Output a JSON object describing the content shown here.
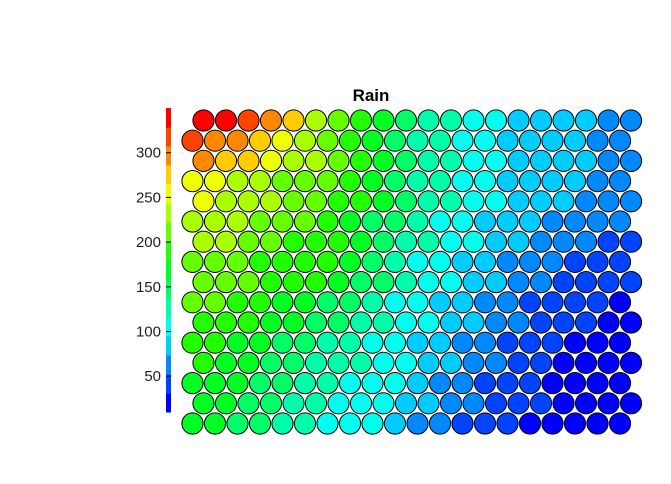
{
  "chart_data": {
    "type": "heatmap",
    "layout": "hexagonal",
    "title": "Rain",
    "xlabel": "",
    "ylabel": "",
    "colorbar": {
      "range": [
        10,
        350
      ],
      "ticks": [
        50,
        100,
        150,
        200,
        250,
        300
      ],
      "tick_labels": [
        "50",
        "100",
        "150",
        "200",
        "250",
        "300"
      ],
      "palette": "rainbow",
      "levels": 16
    },
    "grid": {
      "rows": 16,
      "cols": 20
    },
    "values": [
      [
        350,
        340,
        315,
        300,
        280,
        240,
        215,
        185,
        165,
        145,
        130,
        120,
        110,
        100,
        90,
        85,
        80,
        75,
        70,
        65
      ],
      [
        325,
        305,
        290,
        275,
        260,
        235,
        210,
        185,
        165,
        145,
        130,
        120,
        110,
        100,
        90,
        85,
        80,
        75,
        70,
        65
      ],
      [
        295,
        285,
        270,
        255,
        240,
        225,
        210,
        185,
        165,
        150,
        135,
        120,
        110,
        100,
        90,
        85,
        80,
        75,
        70,
        65
      ],
      [
        260,
        250,
        240,
        230,
        220,
        215,
        205,
        180,
        165,
        150,
        135,
        120,
        110,
        100,
        90,
        85,
        80,
        75,
        70,
        65
      ],
      [
        250,
        240,
        230,
        225,
        220,
        215,
        200,
        180,
        160,
        145,
        130,
        120,
        105,
        95,
        85,
        80,
        75,
        70,
        65,
        60
      ],
      [
        240,
        235,
        225,
        215,
        210,
        205,
        195,
        175,
        155,
        140,
        125,
        115,
        100,
        90,
        80,
        75,
        70,
        65,
        60,
        55
      ],
      [
        230,
        225,
        220,
        210,
        200,
        195,
        185,
        170,
        150,
        135,
        120,
        110,
        95,
        85,
        75,
        70,
        60,
        55,
        50,
        45
      ],
      [
        220,
        215,
        210,
        200,
        195,
        190,
        180,
        160,
        145,
        130,
        115,
        100,
        90,
        80,
        70,
        60,
        55,
        50,
        45,
        40
      ],
      [
        215,
        210,
        205,
        195,
        185,
        180,
        170,
        155,
        140,
        125,
        110,
        95,
        85,
        75,
        65,
        55,
        50,
        45,
        40,
        35
      ],
      [
        210,
        205,
        195,
        185,
        175,
        165,
        155,
        145,
        130,
        115,
        100,
        90,
        80,
        70,
        60,
        50,
        45,
        40,
        35,
        30
      ],
      [
        200,
        195,
        185,
        175,
        165,
        155,
        145,
        135,
        120,
        110,
        95,
        85,
        75,
        65,
        55,
        45,
        40,
        35,
        30,
        25
      ],
      [
        190,
        185,
        175,
        165,
        155,
        145,
        135,
        125,
        115,
        105,
        90,
        80,
        70,
        60,
        50,
        40,
        35,
        30,
        25,
        20
      ],
      [
        180,
        175,
        165,
        155,
        145,
        135,
        125,
        120,
        110,
        100,
        85,
        75,
        65,
        55,
        45,
        40,
        30,
        25,
        20,
        15
      ],
      [
        175,
        170,
        160,
        150,
        140,
        130,
        120,
        115,
        105,
        95,
        80,
        70,
        60,
        50,
        40,
        35,
        28,
        22,
        18,
        15
      ],
      [
        170,
        165,
        155,
        145,
        135,
        125,
        115,
        110,
        100,
        90,
        75,
        65,
        55,
        45,
        38,
        32,
        25,
        20,
        16,
        14
      ],
      [
        165,
        160,
        150,
        140,
        130,
        120,
        115,
        105,
        95,
        85,
        72,
        62,
        52,
        44,
        36,
        30,
        24,
        18,
        15,
        12
      ]
    ]
  }
}
